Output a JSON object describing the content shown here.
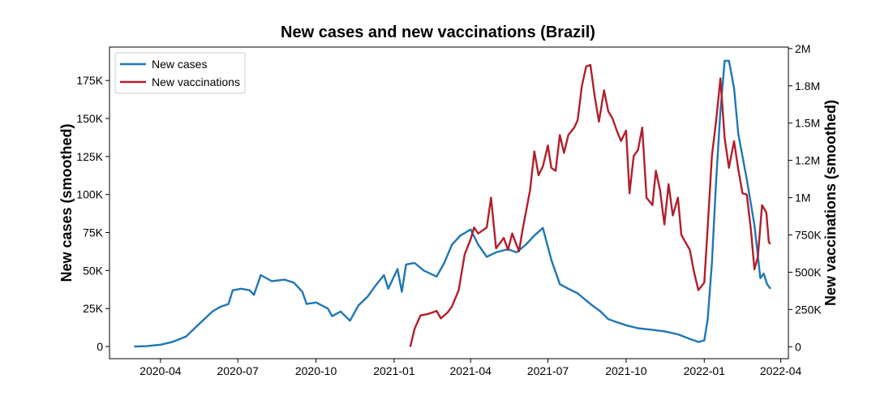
{
  "chart_data": {
    "type": "line",
    "title": "New cases and new vaccinations (Brazil)",
    "xlabel": "",
    "x_ticks": [
      "2020-04",
      "2020-07",
      "2020-10",
      "2021-01",
      "2021-04",
      "2021-07",
      "2021-10",
      "2022-01",
      "2022-04"
    ],
    "xlim": [
      "2020-02-01",
      "2022-04-10"
    ],
    "y_left": {
      "label": "New cases (smoothed)",
      "lim": [
        -8000,
        197000
      ],
      "ticks": [
        0,
        25000,
        50000,
        75000,
        100000,
        125000,
        150000,
        175000
      ],
      "tick_labels": [
        "0",
        "25K",
        "50K",
        "75K",
        "100K",
        "125K",
        "150K",
        "175K"
      ]
    },
    "y_right": {
      "label": "New vaccinations (smoothed)",
      "lim": [
        -80000,
        2010000
      ],
      "ticks": [
        0,
        250000,
        500000,
        750000,
        1000000,
        1250000,
        1500000,
        1750000,
        2000000
      ],
      "tick_labels": [
        "0",
        "250K",
        "500K",
        "750K",
        "1M",
        "1.2M",
        "1.5M",
        "1.8M",
        "2M"
      ]
    },
    "legend": {
      "placement": "top-left",
      "entries": [
        "New cases",
        "New vaccinations"
      ]
    },
    "grid": false,
    "series": [
      {
        "name": "New cases",
        "color": "#1f77b4",
        "axis": "left",
        "points": [
          [
            "2020-03-01",
            0
          ],
          [
            "2020-03-15",
            200
          ],
          [
            "2020-04-01",
            1200
          ],
          [
            "2020-04-15",
            3000
          ],
          [
            "2020-05-01",
            6500
          ],
          [
            "2020-05-15",
            14000
          ],
          [
            "2020-06-01",
            23000
          ],
          [
            "2020-06-10",
            26000
          ],
          [
            "2020-06-20",
            28000
          ],
          [
            "2020-06-25",
            37000
          ],
          [
            "2020-07-05",
            38000
          ],
          [
            "2020-07-15",
            37000
          ],
          [
            "2020-07-20",
            34000
          ],
          [
            "2020-07-28",
            47000
          ],
          [
            "2020-08-10",
            43000
          ],
          [
            "2020-08-25",
            44000
          ],
          [
            "2020-09-05",
            42000
          ],
          [
            "2020-09-15",
            36000
          ],
          [
            "2020-09-20",
            28000
          ],
          [
            "2020-10-01",
            29000
          ],
          [
            "2020-10-15",
            25000
          ],
          [
            "2020-10-20",
            20000
          ],
          [
            "2020-10-30",
            23000
          ],
          [
            "2020-11-10",
            17000
          ],
          [
            "2020-11-20",
            27000
          ],
          [
            "2020-12-01",
            33000
          ],
          [
            "2020-12-10",
            40000
          ],
          [
            "2020-12-20",
            47000
          ],
          [
            "2020-12-25",
            38000
          ],
          [
            "2021-01-05",
            51000
          ],
          [
            "2021-01-10",
            36000
          ],
          [
            "2021-01-15",
            54000
          ],
          [
            "2021-01-25",
            55000
          ],
          [
            "2021-02-05",
            50000
          ],
          [
            "2021-02-20",
            46000
          ],
          [
            "2021-03-01",
            55000
          ],
          [
            "2021-03-10",
            67000
          ],
          [
            "2021-03-20",
            73000
          ],
          [
            "2021-04-01",
            77000
          ],
          [
            "2021-04-10",
            67000
          ],
          [
            "2021-04-20",
            59000
          ],
          [
            "2021-05-01",
            62000
          ],
          [
            "2021-05-15",
            64000
          ],
          [
            "2021-05-25",
            62000
          ],
          [
            "2021-06-05",
            67000
          ],
          [
            "2021-06-15",
            73000
          ],
          [
            "2021-06-25",
            78000
          ],
          [
            "2021-07-05",
            57000
          ],
          [
            "2021-07-15",
            41000
          ],
          [
            "2021-07-25",
            38000
          ],
          [
            "2021-08-05",
            35000
          ],
          [
            "2021-08-20",
            28000
          ],
          [
            "2021-09-01",
            23000
          ],
          [
            "2021-09-10",
            18000
          ],
          [
            "2021-09-20",
            16000
          ],
          [
            "2021-10-01",
            14000
          ],
          [
            "2021-10-15",
            12000
          ],
          [
            "2021-11-01",
            11000
          ],
          [
            "2021-11-15",
            10000
          ],
          [
            "2021-12-01",
            8000
          ],
          [
            "2021-12-15",
            5000
          ],
          [
            "2021-12-25",
            3000
          ],
          [
            "2022-01-01",
            4000
          ],
          [
            "2022-01-05",
            18000
          ],
          [
            "2022-01-10",
            55000
          ],
          [
            "2022-01-15",
            110000
          ],
          [
            "2022-01-20",
            155000
          ],
          [
            "2022-01-25",
            188000
          ],
          [
            "2022-01-30",
            188000
          ],
          [
            "2022-02-05",
            170000
          ],
          [
            "2022-02-10",
            140000
          ],
          [
            "2022-02-20",
            110000
          ],
          [
            "2022-03-01",
            80000
          ],
          [
            "2022-03-05",
            60000
          ],
          [
            "2022-03-08",
            45000
          ],
          [
            "2022-03-12",
            48000
          ],
          [
            "2022-03-16",
            41000
          ],
          [
            "2022-03-20",
            38000
          ]
        ]
      },
      {
        "name": "New vaccinations",
        "color": "#b11f2c",
        "axis": "right",
        "points": [
          [
            "2021-01-20",
            0
          ],
          [
            "2021-01-25",
            120000
          ],
          [
            "2021-02-01",
            210000
          ],
          [
            "2021-02-10",
            220000
          ],
          [
            "2021-02-20",
            240000
          ],
          [
            "2021-02-25",
            190000
          ],
          [
            "2021-03-05",
            230000
          ],
          [
            "2021-03-10",
            270000
          ],
          [
            "2021-03-18",
            380000
          ],
          [
            "2021-03-25",
            620000
          ],
          [
            "2021-04-01",
            720000
          ],
          [
            "2021-04-05",
            800000
          ],
          [
            "2021-04-10",
            760000
          ],
          [
            "2021-04-15",
            780000
          ],
          [
            "2021-04-20",
            800000
          ],
          [
            "2021-04-25",
            1000000
          ],
          [
            "2021-05-01",
            660000
          ],
          [
            "2021-05-10",
            730000
          ],
          [
            "2021-05-15",
            650000
          ],
          [
            "2021-05-20",
            760000
          ],
          [
            "2021-05-28",
            640000
          ],
          [
            "2021-06-01",
            780000
          ],
          [
            "2021-06-10",
            1050000
          ],
          [
            "2021-06-15",
            1310000
          ],
          [
            "2021-06-20",
            1150000
          ],
          [
            "2021-06-25",
            1210000
          ],
          [
            "2021-07-01",
            1350000
          ],
          [
            "2021-07-05",
            1200000
          ],
          [
            "2021-07-10",
            1180000
          ],
          [
            "2021-07-15",
            1420000
          ],
          [
            "2021-07-20",
            1300000
          ],
          [
            "2021-07-25",
            1420000
          ],
          [
            "2021-08-01",
            1470000
          ],
          [
            "2021-08-05",
            1520000
          ],
          [
            "2021-08-10",
            1750000
          ],
          [
            "2021-08-15",
            1880000
          ],
          [
            "2021-08-20",
            1890000
          ],
          [
            "2021-08-25",
            1680000
          ],
          [
            "2021-08-30",
            1510000
          ],
          [
            "2021-09-05",
            1720000
          ],
          [
            "2021-09-10",
            1580000
          ],
          [
            "2021-09-15",
            1530000
          ],
          [
            "2021-09-20",
            1450000
          ],
          [
            "2021-09-25",
            1380000
          ],
          [
            "2021-10-01",
            1450000
          ],
          [
            "2021-10-05",
            1030000
          ],
          [
            "2021-10-10",
            1280000
          ],
          [
            "2021-10-15",
            1320000
          ],
          [
            "2021-10-20",
            1470000
          ],
          [
            "2021-10-25",
            1000000
          ],
          [
            "2021-11-01",
            950000
          ],
          [
            "2021-11-05",
            1180000
          ],
          [
            "2021-11-10",
            1050000
          ],
          [
            "2021-11-15",
            820000
          ],
          [
            "2021-11-20",
            1090000
          ],
          [
            "2021-11-25",
            880000
          ],
          [
            "2021-12-01",
            1000000
          ],
          [
            "2021-12-05",
            750000
          ],
          [
            "2021-12-10",
            700000
          ],
          [
            "2021-12-15",
            650000
          ],
          [
            "2021-12-20",
            500000
          ],
          [
            "2021-12-25",
            380000
          ],
          [
            "2022-01-01",
            430000
          ],
          [
            "2022-01-05",
            800000
          ],
          [
            "2022-01-10",
            1280000
          ],
          [
            "2022-01-15",
            1520000
          ],
          [
            "2022-01-20",
            1800000
          ],
          [
            "2022-01-25",
            1400000
          ],
          [
            "2022-01-30",
            1200000
          ],
          [
            "2022-02-05",
            1380000
          ],
          [
            "2022-02-10",
            1190000
          ],
          [
            "2022-02-15",
            1030000
          ],
          [
            "2022-02-20",
            1020000
          ],
          [
            "2022-02-25",
            780000
          ],
          [
            "2022-03-01",
            520000
          ],
          [
            "2022-03-05",
            600000
          ],
          [
            "2022-03-10",
            950000
          ],
          [
            "2022-03-15",
            900000
          ],
          [
            "2022-03-18",
            700000
          ],
          [
            "2022-03-20",
            690000
          ]
        ]
      }
    ]
  }
}
